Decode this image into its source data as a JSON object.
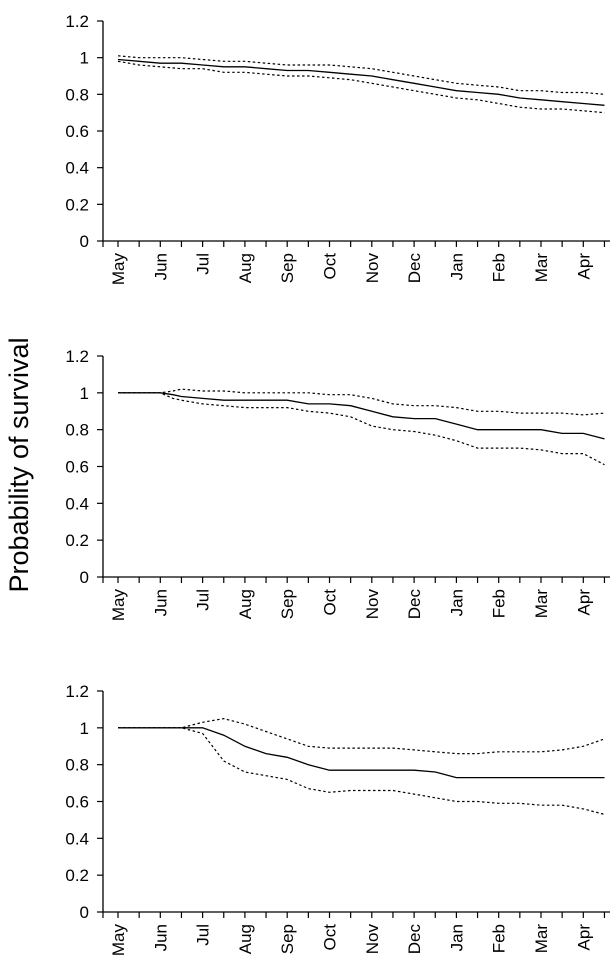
{
  "ylabel": "Probability of survival",
  "chart_data": [
    {
      "type": "line",
      "ylim": [
        0,
        1.2
      ],
      "yticks": [
        "0",
        "0.2",
        "0.4",
        "0.6",
        "0.8",
        "1",
        "1.2"
      ],
      "categories": [
        "May",
        "Jun",
        "Jul",
        "Aug",
        "Sep",
        "Oct",
        "Nov",
        "Dec",
        "Jan",
        "Feb",
        "Mar",
        "Apr"
      ],
      "grid": false,
      "series": [
        {
          "style": "solid",
          "x": [
            0,
            0.5,
            1,
            1.5,
            2,
            2.5,
            3,
            3.5,
            4,
            4.5,
            5,
            5.5,
            6,
            6.5,
            7,
            7.5,
            8,
            8.5,
            9,
            9.5,
            10,
            10.5,
            11,
            11.5
          ],
          "values": [
            0.99,
            0.98,
            0.97,
            0.97,
            0.96,
            0.95,
            0.95,
            0.94,
            0.93,
            0.93,
            0.92,
            0.91,
            0.9,
            0.88,
            0.86,
            0.84,
            0.82,
            0.81,
            0.8,
            0.78,
            0.77,
            0.76,
            0.75,
            0.74
          ]
        },
        {
          "style": "dotted",
          "x": [
            0,
            0.5,
            1,
            1.5,
            2,
            2.5,
            3,
            3.5,
            4,
            4.5,
            5,
            5.5,
            6,
            6.5,
            7,
            7.5,
            8,
            8.5,
            9,
            9.5,
            10,
            10.5,
            11,
            11.5
          ],
          "values": [
            1.01,
            1.0,
            1.0,
            1.0,
            0.99,
            0.98,
            0.98,
            0.97,
            0.96,
            0.96,
            0.96,
            0.95,
            0.94,
            0.92,
            0.9,
            0.88,
            0.86,
            0.85,
            0.84,
            0.82,
            0.82,
            0.81,
            0.81,
            0.8
          ]
        },
        {
          "style": "dotted",
          "x": [
            0,
            0.5,
            1,
            1.5,
            2,
            2.5,
            3,
            3.5,
            4,
            4.5,
            5,
            5.5,
            6,
            6.5,
            7,
            7.5,
            8,
            8.5,
            9,
            9.5,
            10,
            10.5,
            11,
            11.5
          ],
          "values": [
            0.98,
            0.96,
            0.95,
            0.94,
            0.94,
            0.92,
            0.92,
            0.91,
            0.9,
            0.9,
            0.89,
            0.88,
            0.86,
            0.84,
            0.82,
            0.8,
            0.78,
            0.77,
            0.75,
            0.73,
            0.72,
            0.72,
            0.71,
            0.7
          ]
        }
      ]
    },
    {
      "type": "line",
      "ylim": [
        0,
        1.2
      ],
      "yticks": [
        "0",
        "0.2",
        "0.4",
        "0.6",
        "0.8",
        "1",
        "1.2"
      ],
      "categories": [
        "May",
        "Jun",
        "Jul",
        "Aug",
        "Sep",
        "Oct",
        "Nov",
        "Dec",
        "Jan",
        "Feb",
        "Mar",
        "Apr"
      ],
      "grid": false,
      "series": [
        {
          "style": "solid",
          "x": [
            0,
            0.5,
            1,
            1.3,
            1.5,
            2,
            2.5,
            3,
            3.5,
            4,
            4.5,
            5,
            5.5,
            6,
            6.5,
            7,
            7.5,
            8,
            8.5,
            9,
            9.5,
            10,
            10.5,
            11,
            11.5
          ],
          "values": [
            1.0,
            1.0,
            1.0,
            0.99,
            0.98,
            0.97,
            0.96,
            0.96,
            0.96,
            0.96,
            0.94,
            0.94,
            0.93,
            0.9,
            0.87,
            0.86,
            0.86,
            0.83,
            0.8,
            0.8,
            0.8,
            0.8,
            0.78,
            0.78,
            0.75
          ]
        },
        {
          "style": "dotted",
          "x": [
            0,
            0.5,
            1,
            1.3,
            1.5,
            2,
            2.5,
            3,
            3.5,
            4,
            4.5,
            5,
            5.5,
            6,
            6.5,
            7,
            7.5,
            8,
            8.5,
            9,
            9.5,
            10,
            10.5,
            11,
            11.5
          ],
          "values": [
            1.0,
            1.0,
            1.0,
            1.01,
            1.02,
            1.01,
            1.01,
            1.0,
            1.0,
            1.0,
            1.0,
            0.99,
            0.99,
            0.97,
            0.94,
            0.93,
            0.93,
            0.92,
            0.9,
            0.9,
            0.89,
            0.89,
            0.89,
            0.88,
            0.89
          ]
        },
        {
          "style": "dotted",
          "x": [
            0,
            0.5,
            1,
            1.3,
            1.5,
            2,
            2.5,
            3,
            3.5,
            4,
            4.5,
            5,
            5.5,
            6,
            6.5,
            7,
            7.5,
            8,
            8.5,
            9,
            9.5,
            10,
            10.5,
            11,
            11.5
          ],
          "values": [
            1.0,
            1.0,
            1.0,
            0.97,
            0.96,
            0.94,
            0.93,
            0.92,
            0.92,
            0.92,
            0.9,
            0.89,
            0.87,
            0.82,
            0.8,
            0.79,
            0.77,
            0.74,
            0.7,
            0.7,
            0.7,
            0.69,
            0.67,
            0.67,
            0.61
          ]
        }
      ]
    },
    {
      "type": "line",
      "ylim": [
        0,
        1.2
      ],
      "yticks": [
        "0",
        "0.2",
        "0.4",
        "0.6",
        "0.8",
        "1",
        "1.2"
      ],
      "categories": [
        "May",
        "Jun",
        "Jul",
        "Aug",
        "Sep",
        "Oct",
        "Nov",
        "Dec",
        "Jan",
        "Feb",
        "Mar",
        "Apr"
      ],
      "grid": false,
      "series": [
        {
          "style": "solid",
          "x": [
            0,
            0.5,
            1,
            1.5,
            2,
            2.5,
            3,
            3.5,
            4,
            4.5,
            5,
            5.5,
            6,
            6.5,
            7,
            7.5,
            8,
            8.5,
            9,
            9.5,
            10,
            10.5,
            11,
            11.5
          ],
          "values": [
            1.0,
            1.0,
            1.0,
            1.0,
            1.0,
            0.96,
            0.9,
            0.86,
            0.84,
            0.8,
            0.77,
            0.77,
            0.77,
            0.77,
            0.77,
            0.76,
            0.73,
            0.73,
            0.73,
            0.73,
            0.73,
            0.73,
            0.73,
            0.73
          ]
        },
        {
          "style": "dotted",
          "x": [
            0,
            0.5,
            1,
            1.5,
            2,
            2.5,
            3,
            3.5,
            4,
            4.5,
            5,
            5.5,
            6,
            6.5,
            7,
            7.5,
            8,
            8.5,
            9,
            9.5,
            10,
            10.5,
            11,
            11.5
          ],
          "values": [
            1.0,
            1.0,
            1.0,
            1.0,
            1.03,
            1.05,
            1.02,
            0.98,
            0.94,
            0.9,
            0.89,
            0.89,
            0.89,
            0.89,
            0.88,
            0.87,
            0.86,
            0.86,
            0.87,
            0.87,
            0.87,
            0.88,
            0.9,
            0.94
          ]
        },
        {
          "style": "dotted",
          "x": [
            0,
            0.5,
            1,
            1.5,
            2,
            2.5,
            3,
            3.5,
            4,
            4.5,
            5,
            5.5,
            6,
            6.5,
            7,
            7.5,
            8,
            8.5,
            9,
            9.5,
            10,
            10.5,
            11,
            11.5
          ],
          "values": [
            1.0,
            1.0,
            1.0,
            1.0,
            0.97,
            0.82,
            0.76,
            0.74,
            0.72,
            0.67,
            0.65,
            0.66,
            0.66,
            0.66,
            0.64,
            0.62,
            0.6,
            0.6,
            0.59,
            0.59,
            0.58,
            0.58,
            0.56,
            0.53
          ]
        }
      ]
    }
  ]
}
